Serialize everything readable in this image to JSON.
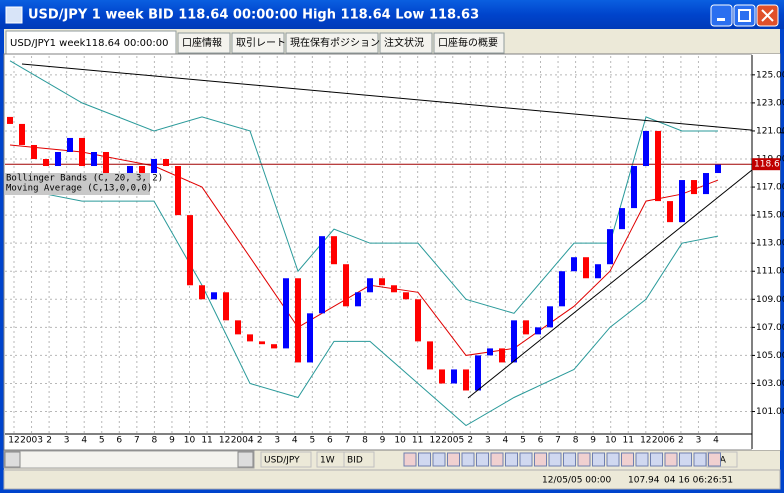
{
  "window": {
    "title": "USD/JPY 1 week BID 118.64 00:00:00 High 118.64 Low 118.63",
    "tabs": [
      "USD/JPY1 week118.64 00:00:00",
      "口座情報",
      "取引レート",
      "現在保有ポジション",
      "注文状況",
      "口座毎の概要"
    ],
    "toolbar": [
      "USD/JPY",
      "1W",
      "BID",
      "N/A"
    ],
    "status": [
      "12/05/05 00:00",
      "107.94",
      "04 16 06:26:51"
    ]
  },
  "chart_data": {
    "type": "candlestick",
    "x_labels": [
      "12",
      "2003",
      "2",
      "3",
      "4",
      "5",
      "6",
      "7",
      "8",
      "9",
      "10",
      "11",
      "12",
      "2004",
      "2",
      "3",
      "4",
      "5",
      "6",
      "7",
      "8",
      "9",
      "10",
      "11",
      "12",
      "2005",
      "2",
      "3",
      "4",
      "5",
      "6",
      "7",
      "8",
      "9",
      "10",
      "11",
      "12",
      "2006",
      "2",
      "3",
      "4"
    ],
    "open": [
      122.0,
      121.5,
      120.0,
      119.0,
      118.5,
      119.5,
      120.5,
      118.5,
      119.5,
      118.0,
      117.5,
      118.5,
      118.0,
      119.0,
      118.5,
      115.0,
      110.0,
      109.0,
      109.5,
      107.5,
      106.5,
      106.0,
      105.8,
      105.5,
      110.5,
      104.5,
      108.0,
      113.5,
      111.5,
      108.5,
      109.5,
      110.5,
      110.0,
      109.5,
      109.0,
      106.0,
      104.0,
      103.0,
      104.0,
      102.5,
      105.0,
      105.5,
      104.5,
      107.5,
      106.5,
      107.0,
      108.5,
      111.0,
      112.0,
      110.5,
      111.5,
      114.0,
      115.5,
      118.5,
      121.0,
      116.0,
      114.5,
      117.5,
      116.5,
      118.0
    ],
    "close": [
      121.5,
      120.0,
      119.0,
      118.5,
      119.5,
      120.5,
      118.5,
      119.5,
      118.0,
      117.5,
      118.5,
      118.0,
      119.0,
      118.5,
      115.0,
      110.0,
      109.0,
      109.5,
      107.5,
      106.5,
      106.0,
      105.8,
      105.5,
      110.5,
      104.5,
      108.0,
      113.5,
      111.5,
      108.5,
      109.5,
      110.5,
      110.0,
      109.5,
      109.0,
      106.0,
      104.0,
      103.0,
      104.0,
      102.5,
      105.0,
      105.5,
      104.5,
      107.5,
      106.5,
      107.0,
      108.5,
      111.0,
      112.0,
      110.5,
      111.5,
      114.0,
      115.5,
      118.5,
      121.0,
      116.0,
      114.5,
      117.5,
      116.5,
      118.0,
      118.6
    ],
    "up_color": "#0000ff",
    "down_color": "#ff0000",
    "overlay_x": [
      0,
      6,
      12,
      16,
      20,
      24,
      27,
      30,
      34,
      38,
      42,
      47,
      50,
      53,
      56,
      59
    ],
    "overlays": [
      {
        "name": "Bollinger Bands (C, 20, 3, 2)",
        "color": "#2a9a9a",
        "upper": [
          126.0,
          123.0,
          121.0,
          122.0,
          121.0,
          111.0,
          114.0,
          113.0,
          113.0,
          109.0,
          108.0,
          113.0,
          113.0,
          122.0,
          121.0,
          121.0
        ],
        "lower": [
          117.0,
          116.0,
          116.0,
          110.0,
          103.0,
          102.0,
          106.0,
          106.0,
          103.0,
          100.0,
          102.0,
          104.0,
          107.0,
          109.0,
          113.0,
          113.5
        ]
      },
      {
        "name": "Moving Average (C,13,0,0,0)",
        "color": "#e00000",
        "values": [
          120.0,
          119.5,
          118.5,
          117.0,
          112.0,
          107.0,
          108.5,
          110.0,
          109.5,
          105.0,
          105.5,
          108.5,
          111.0,
          116.0,
          116.5,
          117.5
        ]
      }
    ],
    "last": {
      "value": 118.63,
      "label": "118.6"
    },
    "ylim": [
      98.4,
      126.2
    ],
    "yticks": [
      {
        "value": 101,
        "label": "101.00"
      },
      {
        "value": 103,
        "label": "103.00"
      },
      {
        "value": 105,
        "label": "105.00"
      },
      {
        "value": 107,
        "label": "107.00"
      },
      {
        "value": 109,
        "label": "109.00"
      },
      {
        "value": 111,
        "label": "111.00"
      },
      {
        "value": 113,
        "label": "113.00"
      },
      {
        "value": 115,
        "label": "115.00"
      },
      {
        "value": 117,
        "label": "117.00"
      },
      {
        "value": 119,
        "label": "119.00"
      },
      {
        "value": 121,
        "label": "121.00"
      },
      {
        "value": 123,
        "label": "123.00"
      },
      {
        "value": 125,
        "label": "125.00"
      }
    ],
    "grid": true
  }
}
